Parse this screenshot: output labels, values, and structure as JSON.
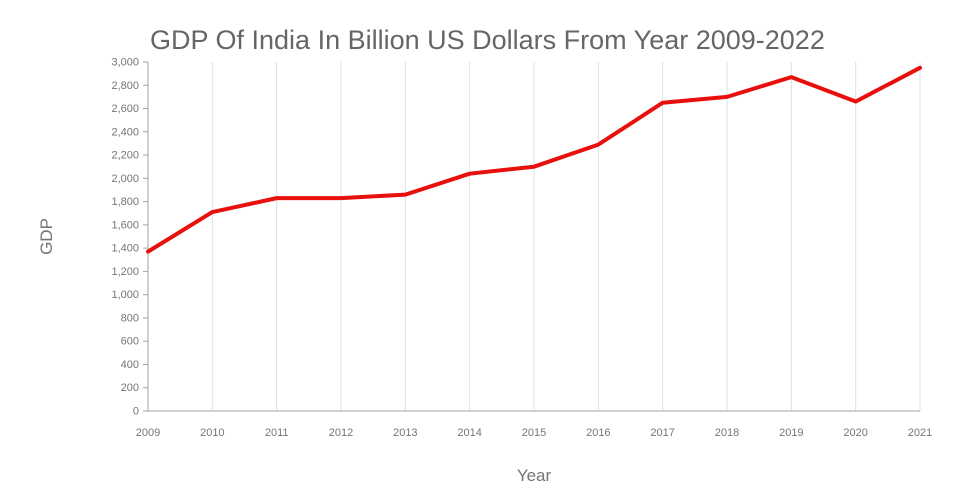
{
  "page": {
    "background": "#ffffff"
  },
  "chart_data": {
    "type": "line",
    "title": "GDP Of India In Billion US Dollars From Year 2009-2022",
    "xlabel": "Year",
    "ylabel": "GDP",
    "categories": [
      "2009",
      "2010",
      "2011",
      "2012",
      "2013",
      "2014",
      "2015",
      "2016",
      "2017",
      "2018",
      "2019",
      "2020",
      "2021"
    ],
    "values": [
      1370,
      1710,
      1830,
      1830,
      1860,
      2040,
      2100,
      2290,
      2650,
      2700,
      2870,
      2660,
      2950
    ],
    "ylim": [
      0,
      3000
    ],
    "y_tick_step": 200,
    "y_tick_labels": [
      "0",
      "200",
      "400",
      "600",
      "800",
      "1,000",
      "1,200",
      "1,400",
      "1,600",
      "1,800",
      "2,000",
      "2,200",
      "2,400",
      "2,600",
      "2,800",
      "3,000"
    ],
    "legend": "none",
    "grid": "vertical",
    "colors": {
      "line": "#e8100c",
      "grid": "#e0e0e0",
      "axis": "#a6a6a6",
      "tick_text": "#757575",
      "axis_label": "#757575",
      "title": "#666666"
    }
  }
}
